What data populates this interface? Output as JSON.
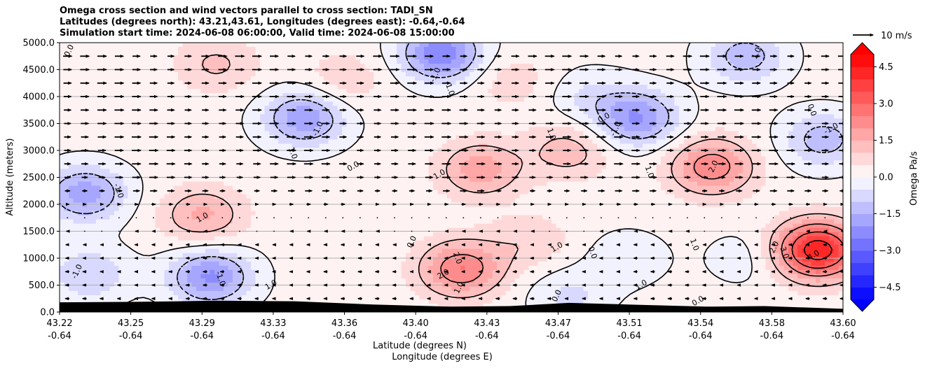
{
  "header": {
    "title_line1": "Omega cross section and wind vectors parallel to cross section: TADI_SN",
    "title_line2": "Latitudes (degrees north): 43.21,43.61, Longitudes (degrees east): -0.64,-0.64",
    "title_line3": "Simulation start time: 2024-06-08 06:00:00, Valid time: 2024-06-08 15:00:00"
  },
  "chart_data": {
    "type": "heatmap",
    "subtype": "filled-contour cross section with contour lines and wind vectors",
    "xlabel_line1": "Latitude (degrees N)",
    "xlabel_line2": "Longitude (degrees E)",
    "ylabel": "Altitude (meters)",
    "ylim": [
      0,
      5000
    ],
    "xlim": [
      43.21,
      43.61
    ],
    "y_ticks": [
      "0.0",
      "500.0",
      "1000.0",
      "1500.0",
      "2000.0",
      "2500.0",
      "3000.0",
      "3500.0",
      "4000.0",
      "4500.0",
      "5000.0"
    ],
    "y_tick_values": [
      0,
      500,
      1000,
      1500,
      2000,
      2500,
      3000,
      3500,
      4000,
      4500,
      5000
    ],
    "x_ticks": [
      {
        "lat": "43.22",
        "lon": "-0.64"
      },
      {
        "lat": "43.25",
        "lon": "-0.64"
      },
      {
        "lat": "43.29",
        "lon": "-0.64"
      },
      {
        "lat": "43.33",
        "lon": "-0.64"
      },
      {
        "lat": "43.36",
        "lon": "-0.64"
      },
      {
        "lat": "43.40",
        "lon": "-0.64"
      },
      {
        "lat": "43.43",
        "lon": "-0.64"
      },
      {
        "lat": "43.47",
        "lon": "-0.64"
      },
      {
        "lat": "43.51",
        "lon": "-0.64"
      },
      {
        "lat": "43.54",
        "lon": "-0.64"
      },
      {
        "lat": "43.58",
        "lon": "-0.64"
      },
      {
        "lat": "43.60",
        "lon": "-0.64"
      }
    ],
    "grid": "horizontal",
    "colorbar": {
      "label": "Omega Pa/s",
      "range": [
        -5.0,
        5.0
      ],
      "step": 0.5,
      "ticks": [
        "4.5",
        "3.0",
        "1.5",
        "0.0",
        "−1.5",
        "−3.0",
        "−4.5"
      ],
      "tick_values": [
        4.5,
        3.0,
        1.5,
        0.0,
        -1.5,
        -3.0,
        -4.5
      ],
      "extend": "both",
      "colormap": "bwr"
    },
    "vector_key": {
      "label": "10 m/s",
      "speed": 10
    },
    "omega_field": {
      "background": 0.2,
      "features": [
        {
          "lat": 43.223,
          "alt": 2200,
          "value": -2.0
        },
        {
          "lat": 43.225,
          "alt": 700,
          "value": -1.2
        },
        {
          "lat": 43.287,
          "alt": 650,
          "value": -2.3
        },
        {
          "lat": 43.335,
          "alt": 3600,
          "value": -2.1
        },
        {
          "lat": 43.405,
          "alt": 4800,
          "value": -2.6
        },
        {
          "lat": 43.505,
          "alt": 3600,
          "value": -2.2
        },
        {
          "lat": 43.56,
          "alt": 4750,
          "value": -1.5
        },
        {
          "lat": 43.6,
          "alt": 3200,
          "value": -1.5
        },
        {
          "lat": 43.48,
          "alt": 4000,
          "value": -0.7
        },
        {
          "lat": 43.5,
          "alt": 1000,
          "value": -0.6
        },
        {
          "lat": 43.56,
          "alt": 1000,
          "value": -0.5
        },
        {
          "lat": 43.47,
          "alt": 300,
          "value": -0.8
        },
        {
          "lat": 43.283,
          "alt": 1800,
          "value": 1.4
        },
        {
          "lat": 43.415,
          "alt": 800,
          "value": 2.3
        },
        {
          "lat": 43.425,
          "alt": 2650,
          "value": 1.6
        },
        {
          "lat": 43.543,
          "alt": 2700,
          "value": 2.2
        },
        {
          "lat": 43.597,
          "alt": 1150,
          "value": 4.3
        },
        {
          "lat": 43.47,
          "alt": 3000,
          "value": 1.1
        },
        {
          "lat": 43.45,
          "alt": 1300,
          "value": 0.7
        },
        {
          "lat": 43.29,
          "alt": 4600,
          "value": 0.9
        },
        {
          "lat": 43.355,
          "alt": 4300,
          "value": 0.7
        },
        {
          "lat": 43.44,
          "alt": 4300,
          "value": 0.6
        }
      ]
    },
    "wind_field": {
      "upper_u_ms": 4.5,
      "lower_u_ms": -2.0,
      "transition_alt_m": 1900
    },
    "contour_levels": [
      -1.0,
      0.0,
      1.0,
      2.0,
      3.0,
      4.0
    ],
    "contour_labels": [
      {
        "text": "0.0",
        "lat": 43.215,
        "alt": 4850
      },
      {
        "text": "-1.0",
        "lat": 43.24,
        "alt": 2250
      },
      {
        "text": "1.0",
        "lat": 43.283,
        "alt": 1750
      },
      {
        "text": "-1.0",
        "lat": 43.219,
        "alt": 750
      },
      {
        "text": "-1.0",
        "lat": 43.292,
        "alt": 620
      },
      {
        "text": "1.0",
        "lat": 43.318,
        "alt": 500
      },
      {
        "text": "-1.0",
        "lat": 43.342,
        "alt": 3400
      },
      {
        "text": "1.0",
        "lat": 43.329,
        "alt": 2950
      },
      {
        "text": "0.0",
        "lat": 43.36,
        "alt": 2700
      },
      {
        "text": "-1.0",
        "lat": 43.402,
        "alt": 4400
      },
      {
        "text": "-1.0",
        "lat": 43.409,
        "alt": 4150
      },
      {
        "text": "1.0",
        "lat": 43.404,
        "alt": 2550
      },
      {
        "text": "0.0",
        "lat": 43.39,
        "alt": 1300
      },
      {
        "text": "2.0",
        "lat": 43.413,
        "alt": 1000
      },
      {
        "text": "2.0",
        "lat": 43.406,
        "alt": 700
      },
      {
        "text": "1.0",
        "lat": 43.414,
        "alt": 450
      },
      {
        "text": "1.0",
        "lat": 43.461,
        "alt": 3300
      },
      {
        "text": "1.0",
        "lat": 43.464,
        "alt": 1200
      },
      {
        "text": "0.0",
        "lat": 43.464,
        "alt": 300
      },
      {
        "text": "0.0",
        "lat": 43.482,
        "alt": 1100
      },
      {
        "text": "0.0",
        "lat": 43.488,
        "alt": 3600
      },
      {
        "text": "-1.0",
        "lat": 43.494,
        "alt": 3400
      },
      {
        "text": "1.0",
        "lat": 43.511,
        "alt": 2600
      },
      {
        "text": "1.0",
        "lat": 43.507,
        "alt": 500
      },
      {
        "text": "2.0",
        "lat": 43.544,
        "alt": 2700
      },
      {
        "text": "1.0",
        "lat": 43.534,
        "alt": 1250
      },
      {
        "text": "0.0",
        "lat": 43.536,
        "alt": 200
      },
      {
        "text": "1.0",
        "lat": 43.566,
        "alt": 4800
      },
      {
        "text": "0.0",
        "lat": 43.594,
        "alt": 3750
      },
      {
        "text": "-1.0",
        "lat": 43.604,
        "alt": 3400
      },
      {
        "text": "2.0",
        "lat": 43.575,
        "alt": 1200
      },
      {
        "text": "3.0",
        "lat": 43.58,
        "alt": 1100
      },
      {
        "text": "4.0",
        "lat": 43.595,
        "alt": 1050
      }
    ],
    "terrain": [
      {
        "lat": 43.21,
        "alt": 180
      },
      {
        "lat": 43.25,
        "alt": 190
      },
      {
        "lat": 43.29,
        "alt": 210
      },
      {
        "lat": 43.33,
        "alt": 200
      },
      {
        "lat": 43.37,
        "alt": 140
      },
      {
        "lat": 43.41,
        "alt": 100
      },
      {
        "lat": 43.44,
        "alt": 110
      },
      {
        "lat": 43.47,
        "alt": 170
      },
      {
        "lat": 43.5,
        "alt": 140
      },
      {
        "lat": 43.54,
        "alt": 100
      },
      {
        "lat": 43.57,
        "alt": 110
      },
      {
        "lat": 43.61,
        "alt": 60
      }
    ]
  }
}
